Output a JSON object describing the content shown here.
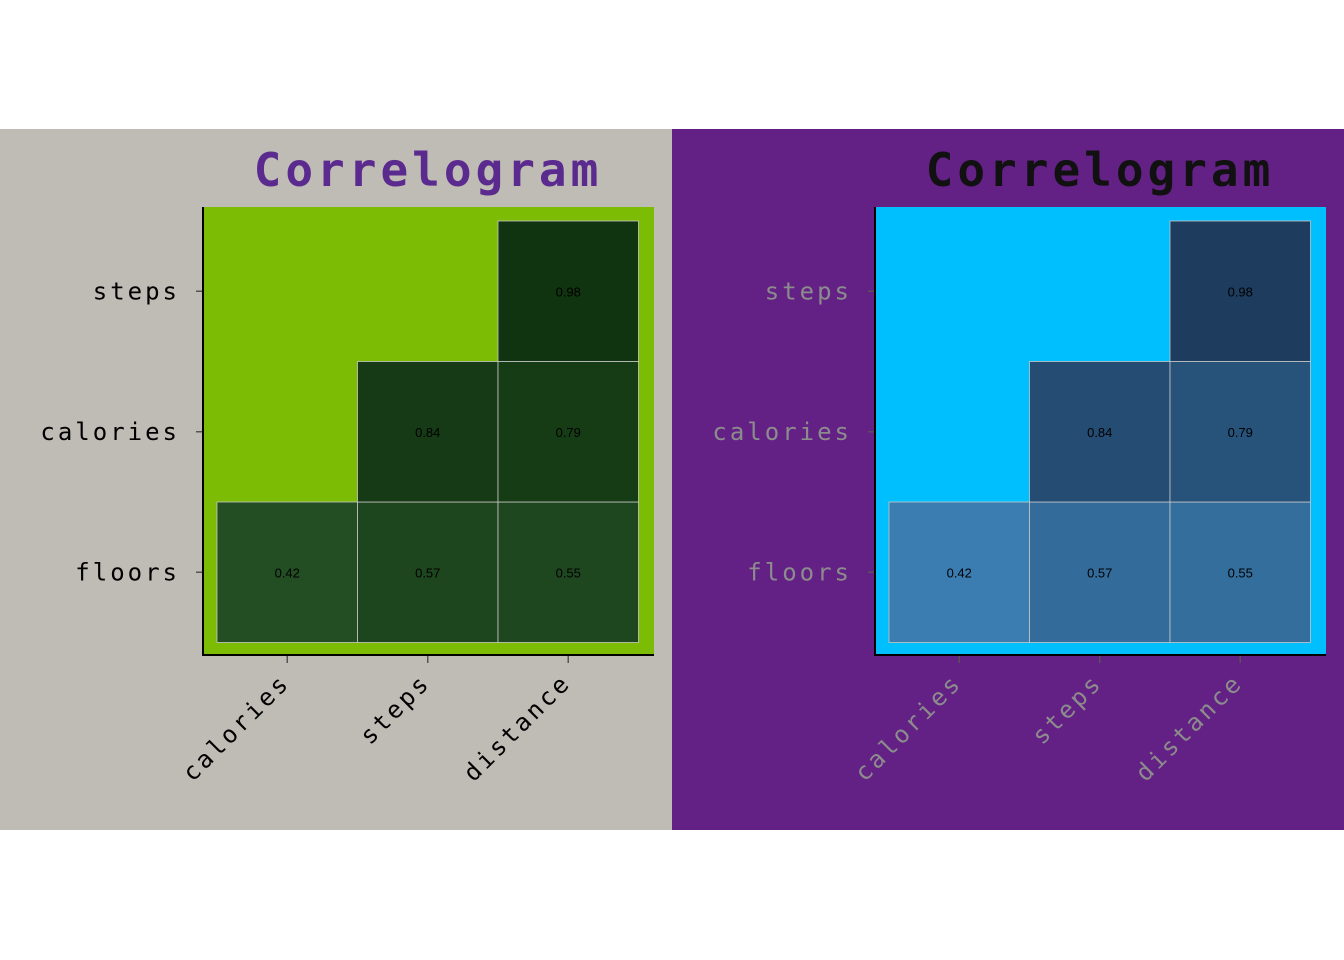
{
  "chart_data": [
    {
      "type": "heatmap",
      "title": "Correlogram",
      "x_categories": [
        "calories",
        "steps",
        "distance"
      ],
      "y_categories": [
        "floors",
        "calories",
        "steps"
      ],
      "cells": [
        {
          "x": "calories",
          "y": "floors",
          "value": 0.42
        },
        {
          "x": "steps",
          "y": "floors",
          "value": 0.57
        },
        {
          "x": "distance",
          "y": "floors",
          "value": 0.55
        },
        {
          "x": "steps",
          "y": "calories",
          "value": 0.84
        },
        {
          "x": "distance",
          "y": "calories",
          "value": 0.79
        },
        {
          "x": "distance",
          "y": "steps",
          "value": 0.98
        }
      ],
      "colors": {
        "background": "#bfbbb5",
        "panel": "#7cbc04",
        "title": "#5b2a8e",
        "axis_text": "#000000",
        "cell_low": "#234d23",
        "cell_high": "#103310",
        "cell_border": "#c8c8c8",
        "value_text": "#000000"
      }
    },
    {
      "type": "heatmap",
      "title": "Correlogram",
      "x_categories": [
        "calories",
        "steps",
        "distance"
      ],
      "y_categories": [
        "floors",
        "calories",
        "steps"
      ],
      "cells": [
        {
          "x": "calories",
          "y": "floors",
          "value": 0.42
        },
        {
          "x": "steps",
          "y": "floors",
          "value": 0.57
        },
        {
          "x": "distance",
          "y": "floors",
          "value": 0.55
        },
        {
          "x": "steps",
          "y": "calories",
          "value": 0.84
        },
        {
          "x": "distance",
          "y": "calories",
          "value": 0.79
        },
        {
          "x": "distance",
          "y": "steps",
          "value": 0.98
        }
      ],
      "colors": {
        "background": "#632186",
        "panel": "#00bfff",
        "title": "#111111",
        "axis_text": "#8c8c8c",
        "cell_low": "#3b7db0",
        "cell_high": "#1d3c5e",
        "cell_border": "#c8c8c8",
        "value_text": "#000000"
      }
    }
  ]
}
